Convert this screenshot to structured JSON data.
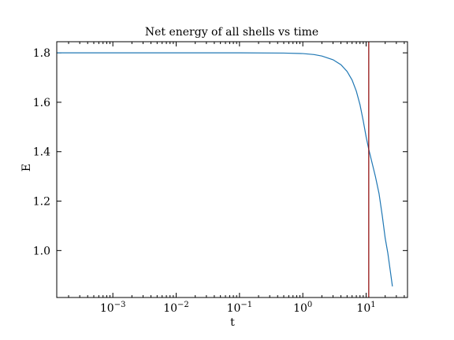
{
  "chart_data": {
    "type": "line",
    "title": "Net energy of all shells vs time",
    "xlabel": "t",
    "ylabel": "E",
    "xscale": "log",
    "xlim": [
      0.00013,
      45
    ],
    "ylim": [
      0.81,
      1.845
    ],
    "x_ticks": [
      {
        "base": "10",
        "exp": "−3",
        "value": 0.001
      },
      {
        "base": "10",
        "exp": "−2",
        "value": 0.01
      },
      {
        "base": "10",
        "exp": "−1",
        "value": 0.1
      },
      {
        "base": "10",
        "exp": "0",
        "value": 1
      },
      {
        "base": "10",
        "exp": "1",
        "value": 10
      }
    ],
    "y_ticks": [
      {
        "label": "1.0",
        "value": 1.0
      },
      {
        "label": "1.2",
        "value": 1.2
      },
      {
        "label": "1.4",
        "value": 1.4
      },
      {
        "label": "1.6",
        "value": 1.6
      },
      {
        "label": "1.8",
        "value": 1.8
      }
    ],
    "series": [
      {
        "color": "#1f77b4",
        "x": [
          0.00013,
          0.001,
          0.01,
          0.1,
          0.5,
          1,
          1.5,
          2,
          3,
          4,
          5,
          6,
          7,
          8,
          9,
          10,
          11,
          12,
          14,
          16,
          18,
          20,
          22,
          24,
          26
        ],
        "y": [
          1.8,
          1.8,
          1.8,
          1.8,
          1.799,
          1.797,
          1.793,
          1.787,
          1.772,
          1.752,
          1.725,
          1.69,
          1.645,
          1.59,
          1.525,
          1.46,
          1.41,
          1.37,
          1.3,
          1.23,
          1.14,
          1.05,
          0.99,
          0.92,
          0.855
        ]
      }
    ],
    "vline": {
      "x": 11,
      "color": "#8b0000"
    },
    "grid": false,
    "legend": "none"
  }
}
